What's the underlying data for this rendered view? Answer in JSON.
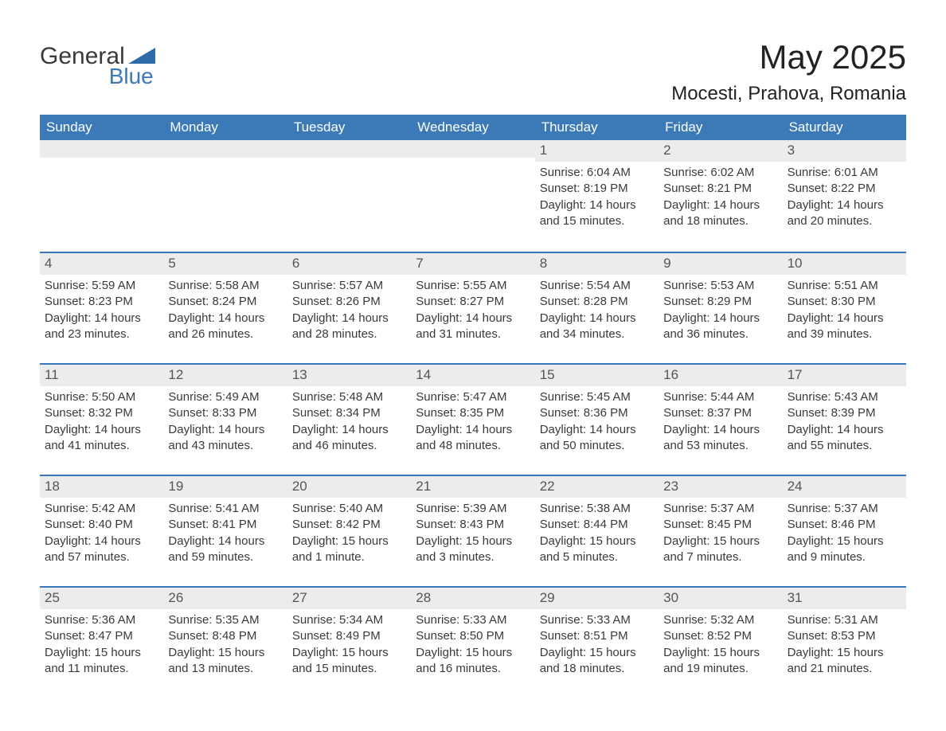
{
  "brand": {
    "top": "General",
    "bottom": "Blue",
    "triangle_color": "#2e6ba8",
    "top_color": "#3a3a3a",
    "bottom_color": "#3b79b7"
  },
  "title": "May 2025",
  "location": "Mocesti, Prahova, Romania",
  "colors": {
    "header_bg": "#3b79b7",
    "header_text": "#ffffff",
    "day_num_bg": "#ececec",
    "text": "#3a3a3a",
    "rule": "#3b79b7",
    "page_bg": "#ffffff"
  },
  "typography": {
    "title_fontsize": 42,
    "location_fontsize": 24,
    "dow_fontsize": 17,
    "body_fontsize": 15
  },
  "days_of_week": [
    "Sunday",
    "Monday",
    "Tuesday",
    "Wednesday",
    "Thursday",
    "Friday",
    "Saturday"
  ],
  "weeks": [
    [
      {
        "num": "",
        "lines": []
      },
      {
        "num": "",
        "lines": []
      },
      {
        "num": "",
        "lines": []
      },
      {
        "num": "",
        "lines": []
      },
      {
        "num": "1",
        "lines": [
          "Sunrise: 6:04 AM",
          "Sunset: 8:19 PM",
          "Daylight: 14 hours",
          "and 15 minutes."
        ]
      },
      {
        "num": "2",
        "lines": [
          "Sunrise: 6:02 AM",
          "Sunset: 8:21 PM",
          "Daylight: 14 hours",
          "and 18 minutes."
        ]
      },
      {
        "num": "3",
        "lines": [
          "Sunrise: 6:01 AM",
          "Sunset: 8:22 PM",
          "Daylight: 14 hours",
          "and 20 minutes."
        ]
      }
    ],
    [
      {
        "num": "4",
        "lines": [
          "Sunrise: 5:59 AM",
          "Sunset: 8:23 PM",
          "Daylight: 14 hours",
          "and 23 minutes."
        ]
      },
      {
        "num": "5",
        "lines": [
          "Sunrise: 5:58 AM",
          "Sunset: 8:24 PM",
          "Daylight: 14 hours",
          "and 26 minutes."
        ]
      },
      {
        "num": "6",
        "lines": [
          "Sunrise: 5:57 AM",
          "Sunset: 8:26 PM",
          "Daylight: 14 hours",
          "and 28 minutes."
        ]
      },
      {
        "num": "7",
        "lines": [
          "Sunrise: 5:55 AM",
          "Sunset: 8:27 PM",
          "Daylight: 14 hours",
          "and 31 minutes."
        ]
      },
      {
        "num": "8",
        "lines": [
          "Sunrise: 5:54 AM",
          "Sunset: 8:28 PM",
          "Daylight: 14 hours",
          "and 34 minutes."
        ]
      },
      {
        "num": "9",
        "lines": [
          "Sunrise: 5:53 AM",
          "Sunset: 8:29 PM",
          "Daylight: 14 hours",
          "and 36 minutes."
        ]
      },
      {
        "num": "10",
        "lines": [
          "Sunrise: 5:51 AM",
          "Sunset: 8:30 PM",
          "Daylight: 14 hours",
          "and 39 minutes."
        ]
      }
    ],
    [
      {
        "num": "11",
        "lines": [
          "Sunrise: 5:50 AM",
          "Sunset: 8:32 PM",
          "Daylight: 14 hours",
          "and 41 minutes."
        ]
      },
      {
        "num": "12",
        "lines": [
          "Sunrise: 5:49 AM",
          "Sunset: 8:33 PM",
          "Daylight: 14 hours",
          "and 43 minutes."
        ]
      },
      {
        "num": "13",
        "lines": [
          "Sunrise: 5:48 AM",
          "Sunset: 8:34 PM",
          "Daylight: 14 hours",
          "and 46 minutes."
        ]
      },
      {
        "num": "14",
        "lines": [
          "Sunrise: 5:47 AM",
          "Sunset: 8:35 PM",
          "Daylight: 14 hours",
          "and 48 minutes."
        ]
      },
      {
        "num": "15",
        "lines": [
          "Sunrise: 5:45 AM",
          "Sunset: 8:36 PM",
          "Daylight: 14 hours",
          "and 50 minutes."
        ]
      },
      {
        "num": "16",
        "lines": [
          "Sunrise: 5:44 AM",
          "Sunset: 8:37 PM",
          "Daylight: 14 hours",
          "and 53 minutes."
        ]
      },
      {
        "num": "17",
        "lines": [
          "Sunrise: 5:43 AM",
          "Sunset: 8:39 PM",
          "Daylight: 14 hours",
          "and 55 minutes."
        ]
      }
    ],
    [
      {
        "num": "18",
        "lines": [
          "Sunrise: 5:42 AM",
          "Sunset: 8:40 PM",
          "Daylight: 14 hours",
          "and 57 minutes."
        ]
      },
      {
        "num": "19",
        "lines": [
          "Sunrise: 5:41 AM",
          "Sunset: 8:41 PM",
          "Daylight: 14 hours",
          "and 59 minutes."
        ]
      },
      {
        "num": "20",
        "lines": [
          "Sunrise: 5:40 AM",
          "Sunset: 8:42 PM",
          "Daylight: 15 hours",
          "and 1 minute."
        ]
      },
      {
        "num": "21",
        "lines": [
          "Sunrise: 5:39 AM",
          "Sunset: 8:43 PM",
          "Daylight: 15 hours",
          "and 3 minutes."
        ]
      },
      {
        "num": "22",
        "lines": [
          "Sunrise: 5:38 AM",
          "Sunset: 8:44 PM",
          "Daylight: 15 hours",
          "and 5 minutes."
        ]
      },
      {
        "num": "23",
        "lines": [
          "Sunrise: 5:37 AM",
          "Sunset: 8:45 PM",
          "Daylight: 15 hours",
          "and 7 minutes."
        ]
      },
      {
        "num": "24",
        "lines": [
          "Sunrise: 5:37 AM",
          "Sunset: 8:46 PM",
          "Daylight: 15 hours",
          "and 9 minutes."
        ]
      }
    ],
    [
      {
        "num": "25",
        "lines": [
          "Sunrise: 5:36 AM",
          "Sunset: 8:47 PM",
          "Daylight: 15 hours",
          "and 11 minutes."
        ]
      },
      {
        "num": "26",
        "lines": [
          "Sunrise: 5:35 AM",
          "Sunset: 8:48 PM",
          "Daylight: 15 hours",
          "and 13 minutes."
        ]
      },
      {
        "num": "27",
        "lines": [
          "Sunrise: 5:34 AM",
          "Sunset: 8:49 PM",
          "Daylight: 15 hours",
          "and 15 minutes."
        ]
      },
      {
        "num": "28",
        "lines": [
          "Sunrise: 5:33 AM",
          "Sunset: 8:50 PM",
          "Daylight: 15 hours",
          "and 16 minutes."
        ]
      },
      {
        "num": "29",
        "lines": [
          "Sunrise: 5:33 AM",
          "Sunset: 8:51 PM",
          "Daylight: 15 hours",
          "and 18 minutes."
        ]
      },
      {
        "num": "30",
        "lines": [
          "Sunrise: 5:32 AM",
          "Sunset: 8:52 PM",
          "Daylight: 15 hours",
          "and 19 minutes."
        ]
      },
      {
        "num": "31",
        "lines": [
          "Sunrise: 5:31 AM",
          "Sunset: 8:53 PM",
          "Daylight: 15 hours",
          "and 21 minutes."
        ]
      }
    ]
  ]
}
